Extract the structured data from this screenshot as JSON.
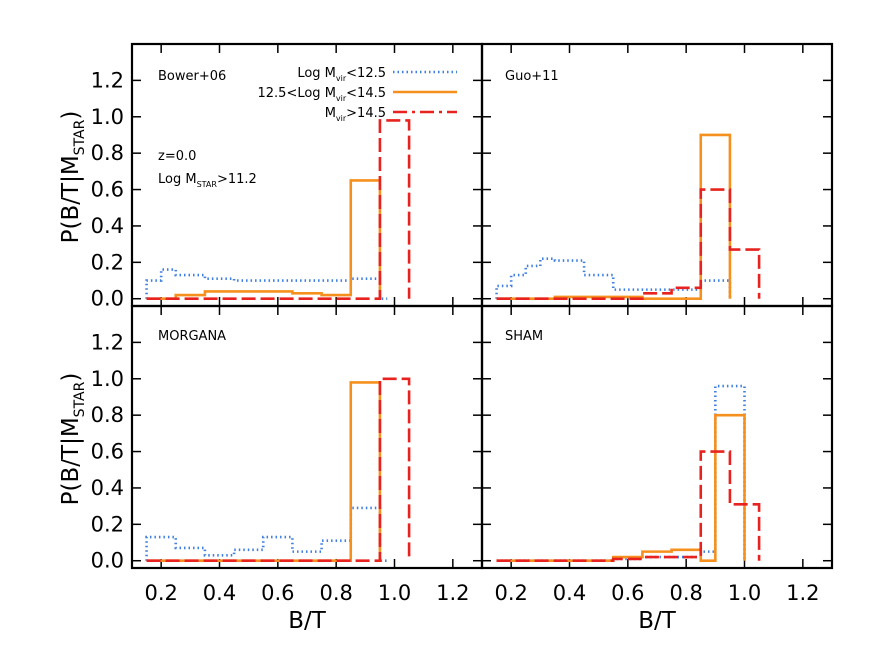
{
  "chart_data": [
    {
      "type": "histogram",
      "panel": "top-left",
      "panel_label": "Bower+06",
      "annotations": [
        "z=0.0",
        "Log M_STAR>11.2"
      ],
      "xlabel": "",
      "ylabel": "P(B/T|M_STAR)",
      "xlim": [
        0.1,
        1.3
      ],
      "ylim": [
        -0.04,
        1.4
      ],
      "series": [
        {
          "name": "Log M_vir<12.5",
          "color": "#3f7fe0",
          "style": "dotted",
          "bins": [
            0.15,
            0.2,
            0.25,
            0.35,
            0.45,
            0.55,
            0.65,
            0.75,
            0.85,
            0.95,
            0.975
          ],
          "values": [
            0.1,
            0.16,
            0.13,
            0.11,
            0.1,
            0.1,
            0.1,
            0.1,
            0.11,
            0.0
          ]
        },
        {
          "name": "12.5<Log M_vir<14.5",
          "color": "#f5901e",
          "style": "solid",
          "bins": [
            0.15,
            0.25,
            0.35,
            0.45,
            0.55,
            0.65,
            0.75,
            0.85,
            0.95
          ],
          "values": [
            0.0,
            0.02,
            0.04,
            0.04,
            0.04,
            0.03,
            0.02,
            0.65
          ]
        },
        {
          "name": "M_vir>14.5",
          "color": "#e8231f",
          "style": "dashed",
          "bins": [
            0.15,
            0.45,
            0.65,
            0.85,
            0.95,
            1.05
          ],
          "values": [
            0.0,
            0.0,
            0.0,
            0.0,
            0.98
          ]
        }
      ]
    },
    {
      "type": "histogram",
      "panel": "top-right",
      "panel_label": "Guo+11",
      "xlabel": "",
      "ylabel": "",
      "xlim": [
        0.1,
        1.3
      ],
      "ylim": [
        -0.04,
        1.4
      ],
      "series": [
        {
          "name": "Log M_vir<12.5",
          "color": "#3f7fe0",
          "style": "dotted",
          "bins": [
            0.15,
            0.2,
            0.25,
            0.3,
            0.35,
            0.45,
            0.55,
            0.65,
            0.75,
            0.85,
            0.95
          ],
          "values": [
            0.07,
            0.13,
            0.18,
            0.22,
            0.21,
            0.13,
            0.05,
            0.05,
            0.05,
            0.1
          ]
        },
        {
          "name": "12.5<Log M_vir<14.5",
          "color": "#f5901e",
          "style": "solid",
          "bins": [
            0.15,
            0.35,
            0.55,
            0.65,
            0.75,
            0.85,
            0.95
          ],
          "values": [
            0.0,
            0.01,
            0.01,
            0.0,
            0.0,
            0.9
          ]
        },
        {
          "name": "M_vir>14.5",
          "color": "#e8231f",
          "style": "dashed",
          "bins": [
            0.15,
            0.65,
            0.75,
            0.85,
            0.95,
            1.05
          ],
          "values": [
            0.0,
            0.03,
            0.06,
            0.6,
            0.27
          ]
        }
      ]
    },
    {
      "type": "histogram",
      "panel": "bottom-left",
      "panel_label": "MORGANA",
      "xlabel": "B/T",
      "ylabel": "P(B/T|M_STAR)",
      "xlim": [
        0.1,
        1.3
      ],
      "ylim": [
        -0.04,
        1.4
      ],
      "series": [
        {
          "name": "Log M_vir<12.5",
          "color": "#3f7fe0",
          "style": "dotted",
          "bins": [
            0.15,
            0.25,
            0.35,
            0.45,
            0.55,
            0.65,
            0.75,
            0.85,
            0.95,
            0.975
          ],
          "values": [
            0.13,
            0.07,
            0.03,
            0.06,
            0.13,
            0.05,
            0.11,
            0.29,
            0.0
          ]
        },
        {
          "name": "12.5<Log M_vir<14.5",
          "color": "#f5901e",
          "style": "solid",
          "bins": [
            0.15,
            0.85,
            0.95
          ],
          "values": [
            0.0,
            0.98
          ]
        },
        {
          "name": "M_vir>14.5",
          "color": "#e8231f",
          "style": "dashed",
          "bins": [
            0.15,
            0.95,
            1.05
          ],
          "values": [
            0.0,
            1.0
          ]
        }
      ]
    },
    {
      "type": "histogram",
      "panel": "bottom-right",
      "panel_label": "SHAM",
      "xlabel": "B/T",
      "ylabel": "",
      "xlim": [
        0.1,
        1.3
      ],
      "ylim": [
        -0.04,
        1.4
      ],
      "series": [
        {
          "name": "Log M_vir<12.5",
          "color": "#3f7fe0",
          "style": "dotted",
          "bins": [
            0.15,
            0.55,
            0.65,
            0.75,
            0.85,
            0.9,
            1.0
          ],
          "values": [
            0.0,
            0.01,
            0.02,
            0.02,
            0.05,
            0.96
          ]
        },
        {
          "name": "12.5<Log M_vir<14.5",
          "color": "#f5901e",
          "style": "solid",
          "bins": [
            0.15,
            0.55,
            0.65,
            0.75,
            0.85,
            0.9,
            1.0
          ],
          "values": [
            0.0,
            0.02,
            0.05,
            0.06,
            0.0,
            0.8
          ]
        },
        {
          "name": "M_vir>14.5",
          "color": "#e8231f",
          "style": "dashed",
          "bins": [
            0.15,
            0.55,
            0.65,
            0.75,
            0.85,
            0.95,
            1.05
          ],
          "values": [
            0.0,
            0.01,
            0.02,
            0.02,
            0.6,
            0.31
          ]
        }
      ]
    }
  ],
  "axes": {
    "yticks": [
      "0.0",
      "0.2",
      "0.4",
      "0.6",
      "0.8",
      "1.0",
      "1.2"
    ],
    "xticks": [
      "0.2",
      "0.4",
      "0.6",
      "0.8",
      "1.0",
      "1.2"
    ],
    "xlabel_left": "B/T",
    "xlabel_right": "B/T",
    "ylabel_top": {
      "main": "P(B/T|M",
      "sub": "STAR",
      "close": ")"
    },
    "ylabel_bottom": {
      "main": "P(B/T|M",
      "sub": "STAR",
      "close": ")"
    }
  },
  "legend": [
    {
      "prefix": "Log M",
      "sub": "vir",
      "suffix": "<12.5"
    },
    {
      "prefix": "12.5<Log M",
      "sub": "vir",
      "suffix": "<14.5"
    },
    {
      "prefix": "M",
      "sub": "vir",
      "suffix": ">14.5"
    }
  ],
  "annotations": {
    "redshift": "z=0.0",
    "mass_prefix": "Log M",
    "mass_sub": "STAR",
    "mass_suffix": ">11.2"
  }
}
